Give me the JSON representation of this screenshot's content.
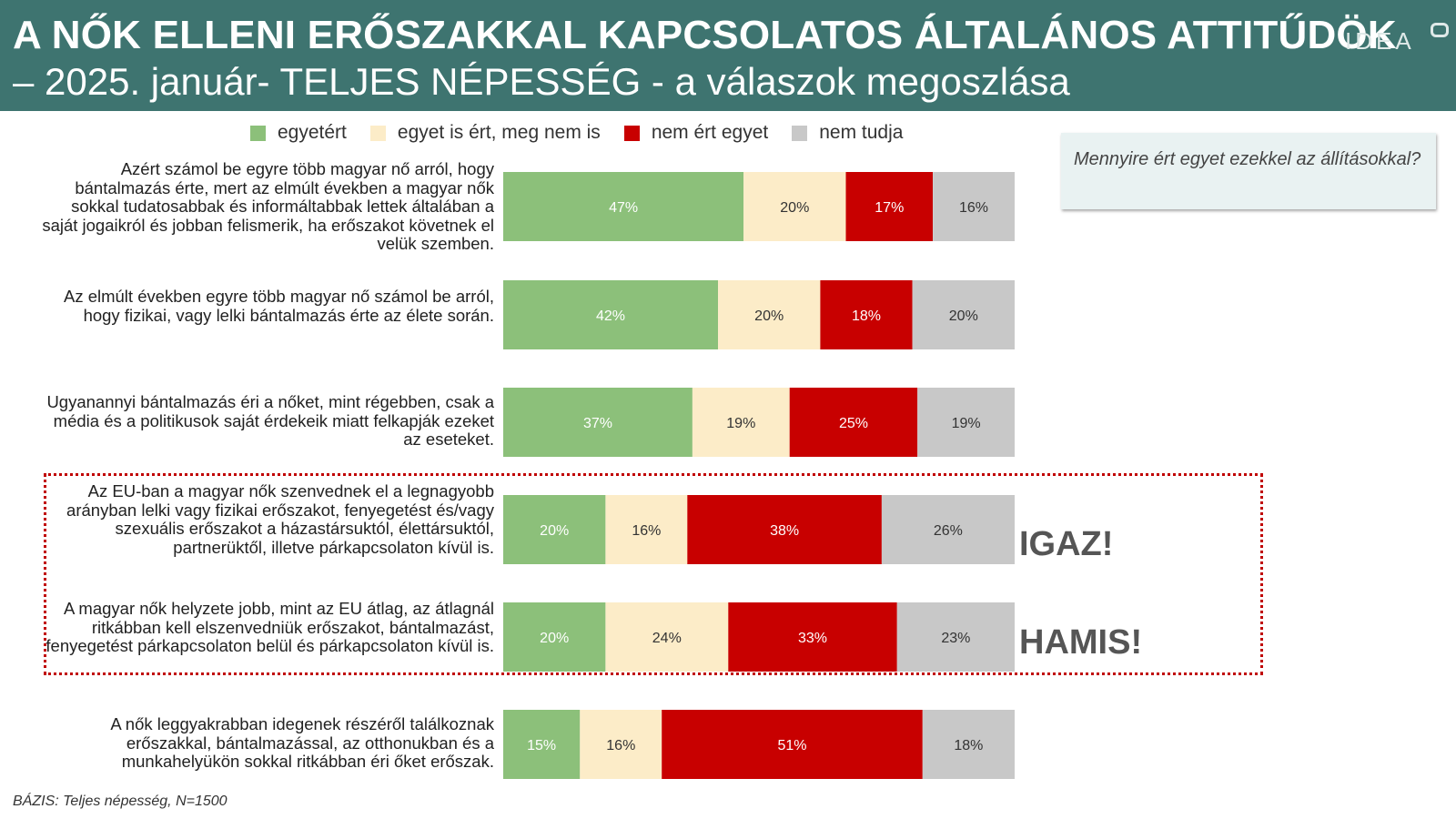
{
  "header": {
    "title_line1": "A NŐK ELLENI ERŐSZAKKAL KAPCSOLATOS ÁLTALÁNOS ATTITŰDÖK",
    "title_line2": "– 2025. január- TELJES NÉPESSÉG - a válaszok megoszlása",
    "logo": "IDEA"
  },
  "question": "Mennyire ért egyet ezekkel az állításokkal?",
  "verdicts": {
    "igaz": "IGAZ!",
    "hamis": "HAMIS!"
  },
  "footer": "BÁZIS: Teljes népesség, N=1500",
  "colors": {
    "egyetert": "#8cc07a",
    "kozepes": "#fcecc8",
    "nem_ert_egyet": "#c80000",
    "nem_tudja": "#c8c8c8",
    "header_bg": "#3e7470"
  },
  "chart_data": {
    "type": "bar",
    "stacked": true,
    "orientation": "horizontal",
    "xlim": [
      0,
      100
    ],
    "unit": "%",
    "legend_position": "top",
    "categories": [
      "Azért számol be egyre több magyar nő arról, hogy bántalmazás érte, mert az elmúlt években a magyar nők sokkal tudatosabbak és informáltabbak lettek általában a saját jogaikról és jobban felismerik, ha erőszakot követnek el velük szemben.",
      "Az elmúlt években egyre több magyar nő számol be arról, hogy fizikai, vagy lelki bántalmazás érte az élete során.",
      "Ugyanannyi bántalmazás éri a nőket, mint régebben, csak a média és a politikusok saját érdekeik miatt felkapják ezeket az eseteket.",
      "Az EU-ban a magyar nők szenvednek el a legnagyobb arányban lelki vagy fizikai erőszakot, fenyegetést és/vagy szexuális erőszakot a házastársuktól, élettársuktól, partnerüktől, illetve párkapcsolaton kívül is.",
      "A magyar nők helyzete jobb, mint az EU átlag, az átlagnál ritkábban kell elszenvedniük erőszakot, bántalmazást, fenyegetést párkapcsolaton belül és párkapcsolaton kívül is.",
      "A nők leggyakrabban idegenek részéről találkoznak erőszakkal, bántalmazással, az otthonukban és a munkahelyükön sokkal ritkábban éri őket erőszak."
    ],
    "series": [
      {
        "name": "egyetért",
        "color": "#8cc07a",
        "label_color": "#ffffff",
        "values": [
          47,
          42,
          37,
          20,
          20,
          15
        ]
      },
      {
        "name": "egyet is ért, meg nem is",
        "color": "#fcecc8",
        "label_color": "#333333",
        "values": [
          20,
          20,
          19,
          16,
          24,
          16
        ]
      },
      {
        "name": "nem ért egyet",
        "color": "#c80000",
        "label_color": "#ffffff",
        "values": [
          17,
          18,
          25,
          38,
          33,
          51
        ]
      },
      {
        "name": "nem tudja",
        "color": "#c8c8c8",
        "label_color": "#333333",
        "values": [
          16,
          20,
          19,
          26,
          23,
          18
        ]
      }
    ]
  }
}
